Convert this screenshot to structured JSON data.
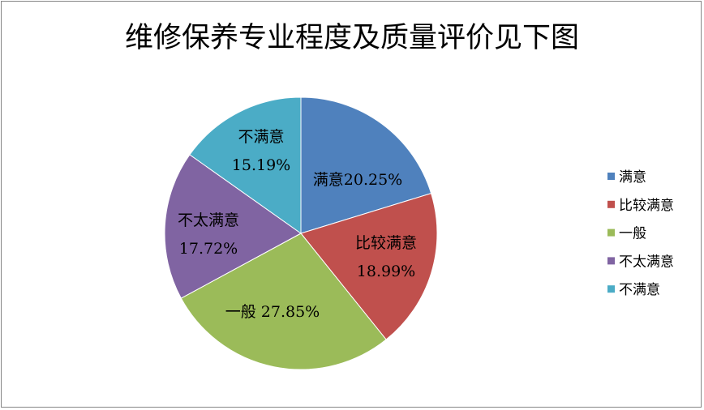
{
  "chart_data": {
    "type": "pie",
    "title": "维修保养专业程度及质量评价见下图",
    "categories": [
      "满意",
      "比较满意",
      "一般",
      "不太满意",
      "不满意"
    ],
    "values": [
      20.25,
      18.99,
      27.85,
      17.72,
      15.19
    ],
    "data_labels": [
      [
        "满意20.25%"
      ],
      [
        "比较满意",
        "18.99%"
      ],
      [
        "一般 27.85%"
      ],
      [
        "不太满意",
        "17.72%"
      ],
      [
        "不满意",
        "15.19%"
      ]
    ],
    "colors": [
      "#4F81BD",
      "#C0504D",
      "#9BBB59",
      "#8064A2",
      "#4BACC6"
    ],
    "legend_position": "right",
    "start_angle": "top, clockwise"
  }
}
